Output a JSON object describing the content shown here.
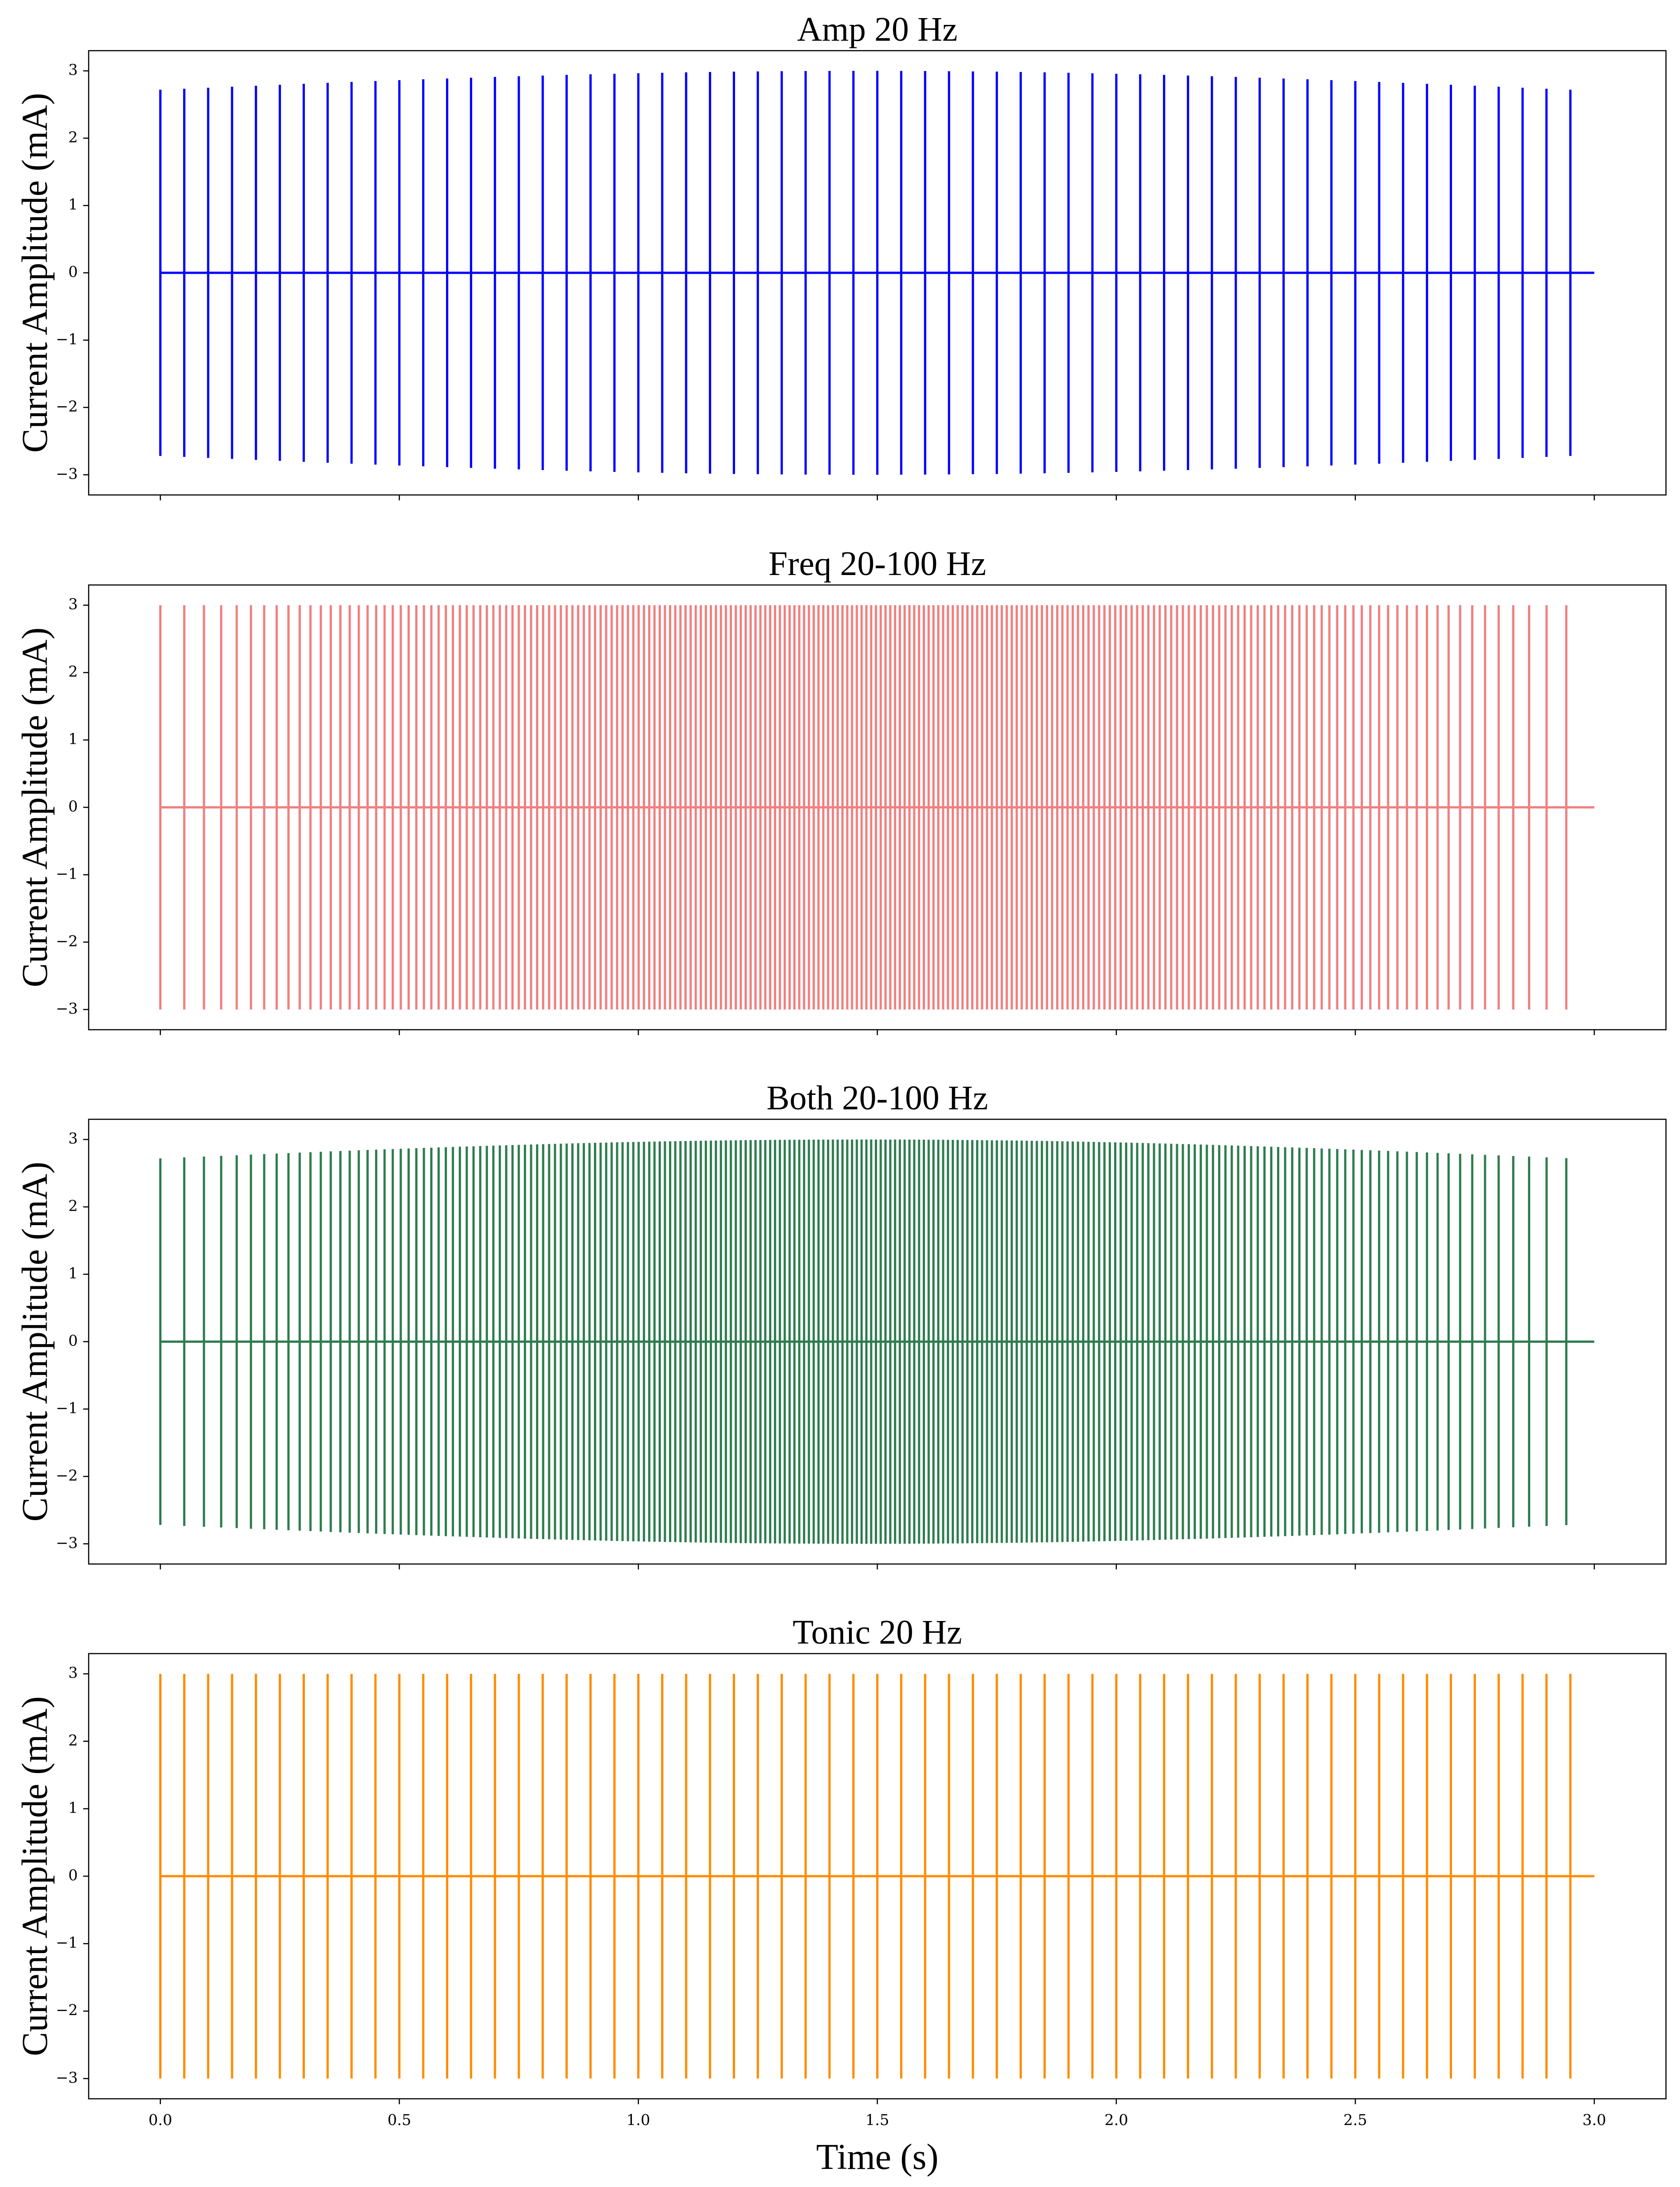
{
  "chart_data": [
    {
      "type": "line",
      "title": "Amp 20 Hz",
      "ylabel": "Current Amplitude (mA)",
      "xlabel": "",
      "color": "#0000ff",
      "xlim": [
        -0.15,
        3.15
      ],
      "ylim": [
        -3.3,
        3.3
      ],
      "xticks": [
        0.0,
        0.5,
        1.0,
        1.5,
        2.0,
        2.5,
        3.0
      ],
      "xtick_labels": [
        "0.0",
        "0.5",
        "1.0",
        "1.5",
        "2.0",
        "2.5",
        "3.0"
      ],
      "show_xtick_labels": false,
      "yticks": [
        -3,
        -2,
        -1,
        0,
        1,
        2,
        3
      ],
      "ytick_labels": [
        "−3",
        "−2",
        "−1",
        "0",
        "1",
        "2",
        "3"
      ],
      "baseline": {
        "x": [
          0.0,
          3.0
        ],
        "y": [
          0,
          0
        ]
      },
      "pulses": {
        "pattern": "amplitude modulated 20 Hz pulse train (each pulse spans +amp to -amp)",
        "start": 0.0,
        "end": 2.95,
        "interval": 0.05,
        "amplitude_min": 2.72,
        "amplitude_max": 3.0
      }
    },
    {
      "type": "line",
      "title": "Freq 20-100 Hz",
      "ylabel": "Current Amplitude (mA)",
      "xlabel": "",
      "color": "#f08080",
      "xlim": [
        -0.15,
        3.15
      ],
      "ylim": [
        -3.3,
        3.3
      ],
      "xticks": [
        0.0,
        0.5,
        1.0,
        1.5,
        2.0,
        2.5,
        3.0
      ],
      "xtick_labels": [
        "0.0",
        "0.5",
        "1.0",
        "1.5",
        "2.0",
        "2.5",
        "3.0"
      ],
      "show_xtick_labels": false,
      "yticks": [
        -3,
        -2,
        -1,
        0,
        1,
        2,
        3
      ],
      "ytick_labels": [
        "−3",
        "−2",
        "−1",
        "0",
        "1",
        "2",
        "3"
      ],
      "baseline": {
        "x": [
          0.0,
          3.0
        ],
        "y": [
          0,
          0
        ]
      },
      "pulses": {
        "pattern": "frequency modulated pulse train 20-100 Hz, constant amplitude",
        "start": 0.0,
        "end": 2.95,
        "freq_min_hz": 20,
        "freq_max_hz": 100,
        "amplitude": 3.0
      }
    },
    {
      "type": "line",
      "title": "Both 20-100 Hz",
      "ylabel": "Current Amplitude (mA)",
      "xlabel": "",
      "color": "#2e7d4f",
      "xlim": [
        -0.15,
        3.15
      ],
      "ylim": [
        -3.3,
        3.3
      ],
      "xticks": [
        0.0,
        0.5,
        1.0,
        1.5,
        2.0,
        2.5,
        3.0
      ],
      "xtick_labels": [
        "0.0",
        "0.5",
        "1.0",
        "1.5",
        "2.0",
        "2.5",
        "3.0"
      ],
      "show_xtick_labels": false,
      "yticks": [
        -3,
        -2,
        -1,
        0,
        1,
        2,
        3
      ],
      "ytick_labels": [
        "−3",
        "−2",
        "−1",
        "0",
        "1",
        "2",
        "3"
      ],
      "baseline": {
        "x": [
          0.0,
          3.0
        ],
        "y": [
          0,
          0
        ]
      },
      "pulses": {
        "pattern": "amplitude and frequency modulated pulse train 20-100 Hz",
        "start": 0.0,
        "end": 2.95,
        "freq_min_hz": 20,
        "freq_max_hz": 100,
        "amplitude_min": 2.72,
        "amplitude_max": 3.0
      }
    },
    {
      "type": "line",
      "title": "Tonic 20 Hz",
      "ylabel": "Current Amplitude (mA)",
      "xlabel": "Time (s)",
      "color": "#ff8c00",
      "xlim": [
        -0.15,
        3.15
      ],
      "ylim": [
        -3.3,
        3.3
      ],
      "xticks": [
        0.0,
        0.5,
        1.0,
        1.5,
        2.0,
        2.5,
        3.0
      ],
      "xtick_labels": [
        "0.0",
        "0.5",
        "1.0",
        "1.5",
        "2.0",
        "2.5",
        "3.0"
      ],
      "show_xtick_labels": true,
      "yticks": [
        -3,
        -2,
        -1,
        0,
        1,
        2,
        3
      ],
      "ytick_labels": [
        "−3",
        "−2",
        "−1",
        "0",
        "1",
        "2",
        "3"
      ],
      "baseline": {
        "x": [
          0.0,
          3.0
        ],
        "y": [
          0,
          0
        ]
      },
      "pulses": {
        "pattern": "tonic 20 Hz pulse train, constant amplitude",
        "start": 0.0,
        "end": 2.95,
        "interval": 0.05,
        "amplitude": 3.0
      }
    }
  ]
}
